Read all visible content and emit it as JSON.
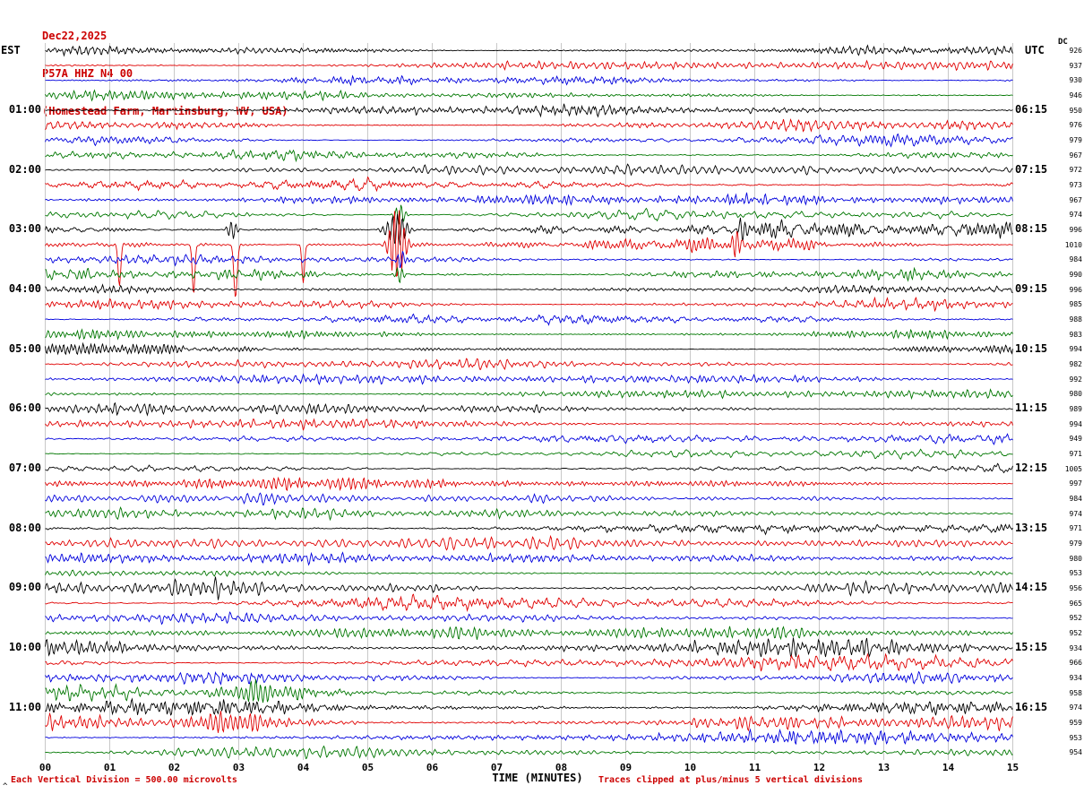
{
  "header": {
    "date": "Dec22,2025",
    "station": "P57A HHZ N4 00",
    "location": "(Homestead Farm, Martinsburg, WV, USA)"
  },
  "axes": {
    "left_tz": "EST",
    "right_tz": "UTC",
    "dc_label": "DC",
    "x_title": "TIME (MINUTES)",
    "x_ticks": [
      "00",
      "01",
      "02",
      "03",
      "04",
      "05",
      "06",
      "07",
      "08",
      "09",
      "10",
      "11",
      "12",
      "13",
      "14",
      "15"
    ]
  },
  "footer": {
    "left_note": "Each Vertical Division =  500.00 microvolts",
    "right_note": "Traces clipped at plus/minus 5 vertical divisions",
    "corner_mark": "^"
  },
  "colors": {
    "trace_cycle": [
      "#000000",
      "#e00000",
      "#0000dd",
      "#007700"
    ],
    "grid": "#c8c8c8",
    "title_red": "#cc0000"
  },
  "chart_data": {
    "type": "line",
    "kind": "seismogram-helicorder",
    "title": "P57A HHZ N4 00 (Homestead Farm, Martinsburg, WV, USA) Dec22,2025",
    "xlabel": "TIME (MINUTES)",
    "x_range_minutes": [
      0,
      15
    ],
    "minutes_per_line": 15,
    "vertical_division_microvolts": 500.0,
    "clip_divisions": 5,
    "rows": [
      {
        "est": "",
        "utc": "",
        "dc": 926,
        "amp": 4
      },
      {
        "dc": 937,
        "amp": 4
      },
      {
        "dc": 930,
        "amp": 3.8
      },
      {
        "dc": 946,
        "amp": 4
      },
      {
        "est": "01:00",
        "utc": "06:15",
        "dc": 950,
        "amp": 4.5
      },
      {
        "dc": 976,
        "amp": 4.2
      },
      {
        "dc": 979,
        "amp": 4
      },
      {
        "dc": 967,
        "amp": 4
      },
      {
        "est": "02:00",
        "utc": "07:15",
        "dc": 972,
        "amp": 4.5
      },
      {
        "dc": 973,
        "amp": 4.2
      },
      {
        "dc": 967,
        "amp": 4
      },
      {
        "dc": 974,
        "amp": 4.3,
        "events": [
          {
            "m": 5.5,
            "a": 12,
            "w": 0.06,
            "t": "burst"
          }
        ]
      },
      {
        "est": "03:00",
        "utc": "08:15",
        "dc": 996,
        "amp": 6.5,
        "events": [
          {
            "m": 2.9,
            "a": 10,
            "w": 0.06,
            "t": "burst"
          },
          {
            "m": 5.45,
            "a": 18,
            "w": 0.12,
            "t": "burst"
          },
          {
            "m": 10.8,
            "a": 14,
            "w": 0.05,
            "t": "burst"
          }
        ]
      },
      {
        "dc": 1010,
        "amp": 5,
        "events": [
          {
            "m": 1.15,
            "a": 48,
            "w": 0.02,
            "t": "spike"
          },
          {
            "m": 2.3,
            "a": 55,
            "w": 0.02,
            "t": "spike"
          },
          {
            "m": 2.95,
            "a": 60,
            "w": 0.025,
            "t": "spike"
          },
          {
            "m": 4.0,
            "a": 42,
            "w": 0.02,
            "t": "spike"
          },
          {
            "m": 5.45,
            "a": 42,
            "w": 0.09,
            "t": "burst"
          },
          {
            "m": 10.7,
            "a": 16,
            "w": 0.06,
            "t": "burst"
          }
        ]
      },
      {
        "dc": 984,
        "amp": 4.3,
        "events": [
          {
            "m": 5.5,
            "a": 9,
            "w": 0.06,
            "t": "burst"
          }
        ]
      },
      {
        "dc": 990,
        "amp": 4.3,
        "events": [
          {
            "m": 5.5,
            "a": 10,
            "w": 0.05,
            "t": "burst"
          }
        ]
      },
      {
        "est": "04:00",
        "utc": "09:15",
        "dc": 996,
        "amp": 4.2
      },
      {
        "dc": 985,
        "amp": 4
      },
      {
        "dc": 988,
        "amp": 3.8
      },
      {
        "dc": 983,
        "amp": 3.8
      },
      {
        "est": "05:00",
        "utc": "10:15",
        "dc": 994,
        "amp": 4.2
      },
      {
        "dc": 982,
        "amp": 4
      },
      {
        "dc": 992,
        "amp": 3.8
      },
      {
        "dc": 980,
        "amp": 3.8
      },
      {
        "est": "06:00",
        "utc": "11:15",
        "dc": 989,
        "amp": 4.2
      },
      {
        "dc": 994,
        "amp": 4.2
      },
      {
        "dc": 949,
        "amp": 3.2
      },
      {
        "dc": 971,
        "amp": 3.4
      },
      {
        "est": "07:00",
        "utc": "12:15",
        "dc": 1005,
        "amp": 5
      },
      {
        "dc": 997,
        "amp": 4.2
      },
      {
        "dc": 984,
        "amp": 4
      },
      {
        "dc": 974,
        "amp": 3.8
      },
      {
        "est": "08:00",
        "utc": "13:15",
        "dc": 971,
        "amp": 5
      },
      {
        "dc": 979,
        "amp": 4.5
      },
      {
        "dc": 980,
        "amp": 4
      },
      {
        "dc": 953,
        "amp": 4
      },
      {
        "est": "09:00",
        "utc": "14:15",
        "dc": 956,
        "amp": 7
      },
      {
        "dc": 965,
        "amp": 6.5
      },
      {
        "dc": 952,
        "amp": 5
      },
      {
        "dc": 952,
        "amp": 4.5
      },
      {
        "est": "10:00",
        "utc": "15:15",
        "dc": 934,
        "amp": 7
      },
      {
        "dc": 966,
        "amp": 6
      },
      {
        "dc": 934,
        "amp": 5
      },
      {
        "dc": 958,
        "amp": 5.5,
        "events": [
          {
            "m": 3.3,
            "a": 9,
            "w": 0.4,
            "t": "burst"
          }
        ]
      },
      {
        "est": "11:00",
        "utc": "16:15",
        "dc": 974,
        "amp": 7
      },
      {
        "dc": 959,
        "amp": 6.2,
        "events": [
          {
            "m": 3.0,
            "a": 8,
            "w": 0.5,
            "t": "burst"
          }
        ]
      },
      {
        "dc": 953,
        "amp": 5.5
      },
      {
        "dc": 954,
        "amp": 5
      }
    ]
  }
}
